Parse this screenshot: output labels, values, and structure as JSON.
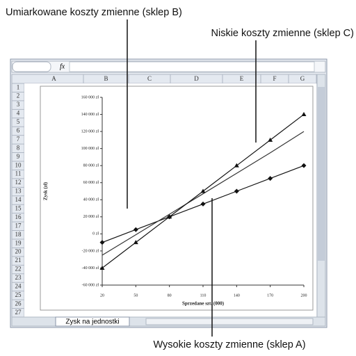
{
  "ui": {
    "formula_icon": "fx",
    "columns": [
      "A",
      "B",
      "C",
      "D",
      "E",
      "F",
      "G"
    ],
    "rows": [
      1,
      2,
      3,
      4,
      5,
      6,
      7,
      8,
      9,
      10,
      11,
      12,
      13,
      14,
      15,
      16,
      17,
      18,
      19,
      20,
      21,
      22,
      23,
      24,
      25,
      26,
      27
    ],
    "sheet_tab": "Zysk na jednostki"
  },
  "chart_data": {
    "type": "line",
    "x_label": "Sprzedane szt. (000)",
    "y_label": "Zysk (zł)",
    "x": [
      20,
      50,
      80,
      110,
      140,
      170,
      200
    ],
    "series": [
      {
        "name": "Wysokie koszty zmienne (sklep A)",
        "color": "#111111",
        "marker": "diamond",
        "values": [
          -10000,
          5000,
          20000,
          35000,
          50000,
          65000,
          80000
        ]
      },
      {
        "name": "Umiarkowane koszty zmienne (sklep B)",
        "color": "#333333",
        "marker": "none",
        "values": [
          -25000,
          -1000,
          23000,
          47000,
          71000,
          95000,
          120000
        ]
      },
      {
        "name": "Niskie koszty zmienne (sklep C)",
        "color": "#111111",
        "marker": "triangle",
        "values": [
          -40000,
          -10000,
          20000,
          50000,
          80000,
          110000,
          140000
        ]
      }
    ],
    "xlim": [
      20,
      200
    ],
    "xticks": [
      20,
      50,
      80,
      110,
      140,
      170,
      200
    ],
    "ylim": [
      -60000,
      160000
    ],
    "yticks": [
      {
        "value": -60000,
        "label": "-60 000 zł"
      },
      {
        "value": -40000,
        "label": "-40 000 zł"
      },
      {
        "value": -20000,
        "label": "-20 000 zł"
      },
      {
        "value": 0,
        "label": "0 zł"
      },
      {
        "value": 20000,
        "label": "20 000 zł"
      },
      {
        "value": 40000,
        "label": "40 000 zł"
      },
      {
        "value": 60000,
        "label": "60 000 zł"
      },
      {
        "value": 80000,
        "label": "80 000 zł"
      },
      {
        "value": 100000,
        "label": "100 000 zł"
      },
      {
        "value": 120000,
        "label": "120 000 zł"
      },
      {
        "value": 140000,
        "label": "140 000 zł"
      },
      {
        "value": 160000,
        "label": "160 000 zł"
      }
    ],
    "grid": false
  }
}
